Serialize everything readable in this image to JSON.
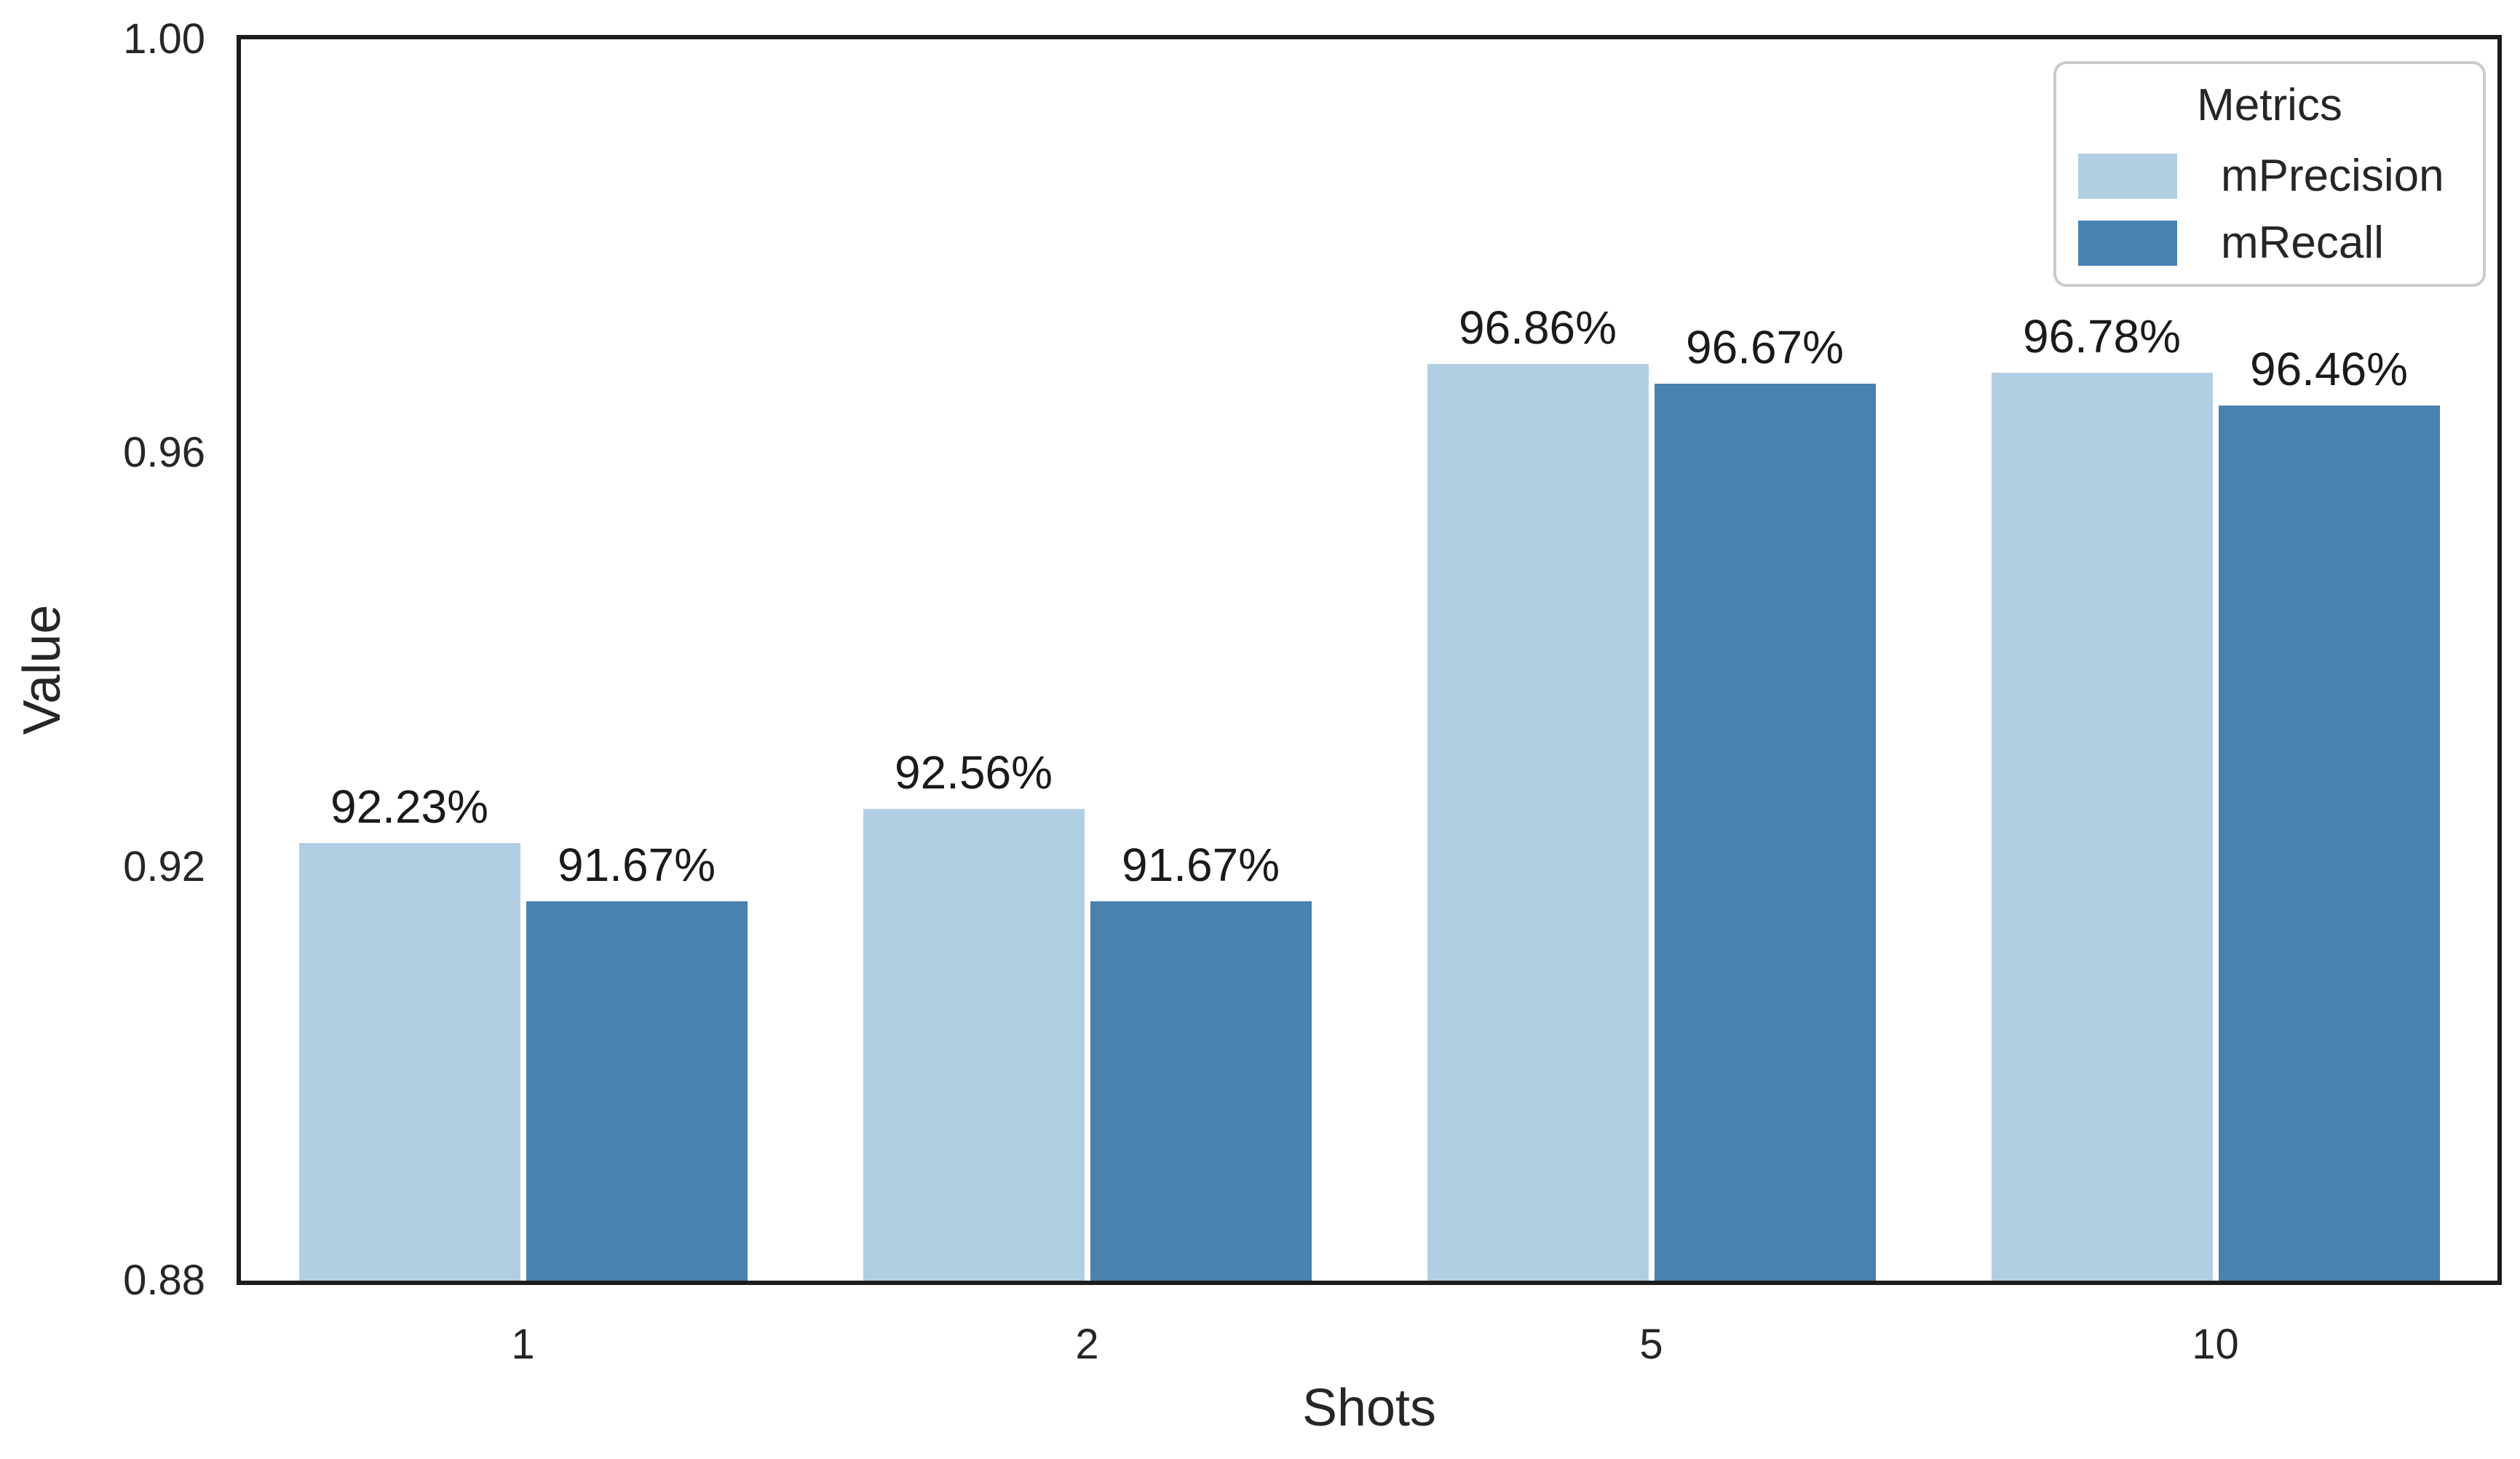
{
  "chart_data": {
    "type": "bar",
    "title": "",
    "xlabel": "Shots",
    "ylabel": "Value",
    "categories": [
      "1",
      "2",
      "5",
      "10"
    ],
    "series": [
      {
        "name": "mPrecision",
        "color": "#b2cee3",
        "values": [
          0.9223,
          0.9256,
          0.9686,
          0.9678
        ],
        "labels": [
          "92.23%",
          "92.56%",
          "96.86%",
          "96.78%"
        ]
      },
      {
        "name": "mRecall",
        "color": "#4982af",
        "values": [
          0.9167,
          0.9167,
          0.9667,
          0.9646
        ],
        "labels": [
          "91.67%",
          "91.67%",
          "96.67%",
          "96.46%"
        ]
      }
    ],
    "ylim": [
      0.88,
      1.0
    ],
    "yticks": [
      1.0,
      0.96,
      0.92,
      0.88
    ],
    "ytick_labels": [
      "1.00",
      "0.96",
      "0.92",
      "0.88"
    ],
    "legend": {
      "title": "Metrics",
      "position": "upper right"
    },
    "grid": false,
    "plot_border_color": "#1c1c1c",
    "background": "#ffffff"
  }
}
